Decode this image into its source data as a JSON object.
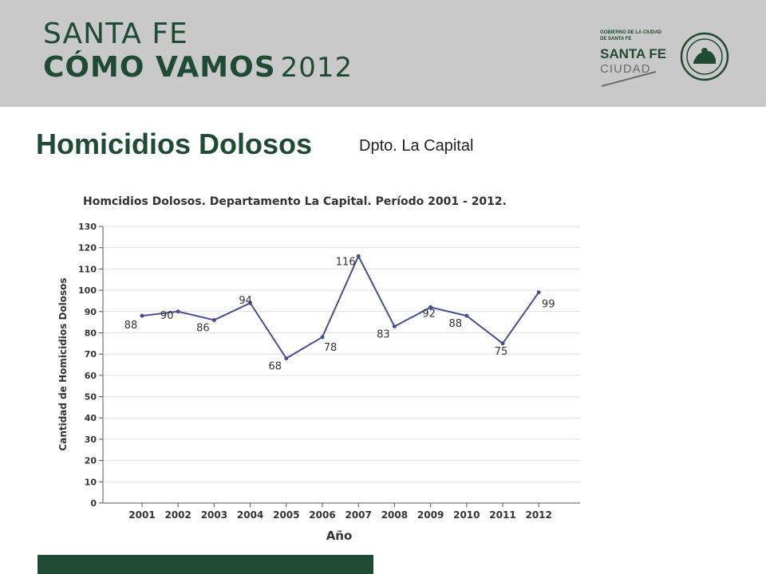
{
  "header": {
    "brand_line1": "SANTA FE",
    "brand_line2": "CÓMO VAMOS",
    "brand_year": "2012",
    "gov_small": "GOBIERNO DE LA CIUDAD DE SANTA FE",
    "gov_santafe": "SANTA FE",
    "gov_ciudad": "CIUDAD"
  },
  "page": {
    "title": "Homicidios Dolosos",
    "subtitle": "Dpto. La Capital"
  },
  "colors": {
    "brand_green": "#1f4a34",
    "header_gray": "#c9c9c9",
    "series_line": "#4a4f8f"
  },
  "chart_data": {
    "type": "line",
    "title": "Homcidios Dolosos. Departamento La Capital. Período 2001 - 2012.",
    "xlabel": "Año",
    "ylabel": "Cantidad de Homicidios Dolosos",
    "categories": [
      "2001",
      "2002",
      "2003",
      "2004",
      "2005",
      "2006",
      "2007",
      "2008",
      "2009",
      "2010",
      "2011",
      "2012"
    ],
    "values": [
      88,
      90,
      86,
      94,
      68,
      78,
      116,
      83,
      92,
      88,
      75,
      99
    ],
    "ylim": [
      0,
      130
    ],
    "yticks": [
      0,
      10,
      20,
      30,
      40,
      50,
      60,
      70,
      80,
      90,
      100,
      110,
      120,
      130
    ],
    "grid": true,
    "legend": "none"
  }
}
